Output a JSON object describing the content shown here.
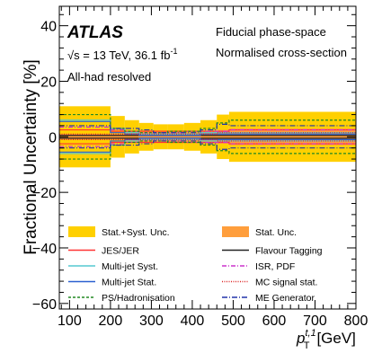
{
  "chart_data": {
    "type": "step",
    "ylabel": "Fractional Uncertainty [%]",
    "xlabel_main": "p",
    "xlabel_sub": "T",
    "xlabel_sup": "t,1",
    "xlabel_unit": "[GeV]",
    "xlim": [
      75,
      800
    ],
    "ylim": [
      -62,
      47
    ],
    "xticks": [
      100,
      200,
      300,
      400,
      500,
      600,
      700,
      800
    ],
    "yticks": [
      -60,
      -40,
      -20,
      0,
      20,
      40
    ],
    "xtick_labels": [
      "100",
      "200",
      "300",
      "400",
      "500",
      "600",
      "700",
      "800"
    ],
    "ytick_labels": [
      "−60",
      "−40",
      "−20",
      "0",
      "20",
      "40"
    ],
    "annotations": {
      "experiment": "ATLAS",
      "energy_prefix": "√s = 13 TeV, 36.1 fb",
      "energy_sup": "-1",
      "channel": "All-had resolved",
      "phase_space": "Fiducial phase-space",
      "normalisation": "Normalised cross-section"
    },
    "bin_edges": [
      75,
      200,
      235,
      270,
      305,
      340,
      380,
      420,
      460,
      490,
      800
    ],
    "series": [
      {
        "name": "Stat.+Syst. Unc.",
        "style": "band",
        "color": "#ffd000",
        "values": [
          11,
          7.5,
          6,
          5,
          4.5,
          4.5,
          5,
          6,
          8,
          9
        ]
      },
      {
        "name": "Stat. Unc.",
        "style": "band",
        "color": "#ff9e3c",
        "values": [
          1,
          1,
          1.5,
          1.5,
          1.5,
          1.5,
          1.5,
          1.5,
          2.5,
          3
        ]
      },
      {
        "name": "JES/JER",
        "style": "line",
        "color": "#ff3333",
        "dash": "",
        "values": [
          2.5,
          2,
          2,
          2,
          2,
          2,
          2,
          2,
          2,
          2.5
        ]
      },
      {
        "name": "Flavour Tagging",
        "style": "line",
        "color": "#222222",
        "dash": "",
        "values": [
          0.5,
          0.5,
          0.5,
          0.5,
          0.5,
          0.5,
          0.5,
          0.5,
          0.5,
          0.5
        ]
      },
      {
        "name": "Multi-jet Syst.",
        "style": "line",
        "color": "#55c8d0",
        "dash": "",
        "values": [
          6,
          3,
          1.5,
          1,
          1,
          1,
          1,
          1.5,
          1.5,
          1.5
        ]
      },
      {
        "name": "ISR, PDF",
        "style": "line",
        "color": "#cc33cc",
        "dash": "5,2,1,2",
        "values": [
          3.5,
          2.5,
          2,
          1.5,
          1.5,
          1.5,
          2,
          2,
          2,
          2.5
        ]
      },
      {
        "name": "Multi-jet Stat.",
        "style": "line",
        "color": "#2a60d0",
        "dash": "",
        "values": [
          5.5,
          1.5,
          1,
          0.5,
          0.5,
          0.5,
          0.5,
          1,
          1,
          1
        ]
      },
      {
        "name": "MC signal stat.",
        "style": "line",
        "color": "#dd2222",
        "dash": "1,1.5",
        "values": [
          1,
          1,
          1,
          1,
          1,
          1,
          1,
          1,
          1.5,
          1.5
        ]
      },
      {
        "name": "PS/Hadronisation",
        "style": "line",
        "color": "#228822",
        "dash": "3,2",
        "values": [
          8,
          3,
          2,
          1.5,
          1.5,
          2,
          2,
          3,
          5,
          6
        ]
      },
      {
        "name": "ME Generator",
        "style": "line",
        "color": "#2233aa",
        "dash": "6,2,1,2",
        "values": [
          4,
          3,
          3,
          2.5,
          1.5,
          1.5,
          1.5,
          2.5,
          4.5,
          4
        ]
      }
    ],
    "legend_placement": "bottom, two columns"
  }
}
